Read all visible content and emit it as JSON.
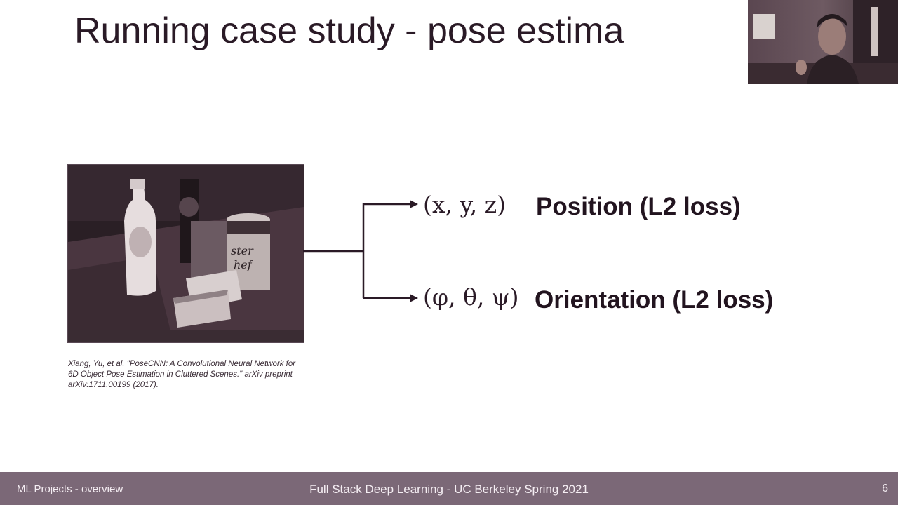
{
  "slide": {
    "title": "Running case study - pose estima",
    "citation": "Xiang, Yu, et al. \"PoseCNN: A Convolutional Neural Network for 6D Object Pose Estimation in Cluttered Scenes.\" arXiv preprint arXiv:1711.00199 (2017).",
    "outputs": [
      {
        "math": "(x, y, z)",
        "label": "Position (L2 loss)"
      },
      {
        "math": "(φ, θ, ψ)",
        "label": "Orientation (L2 loss)"
      }
    ],
    "photo_text": {
      "can_label_line1": "ster",
      "can_label_line2": "hef"
    }
  },
  "footer": {
    "left": "ML Projects - overview",
    "center": "Full Stack Deep Learning - UC Berkeley Spring 2021",
    "page_number": "6"
  },
  "colors": {
    "footer_bg": "#7b6877",
    "text_dark": "#2a1a26"
  }
}
